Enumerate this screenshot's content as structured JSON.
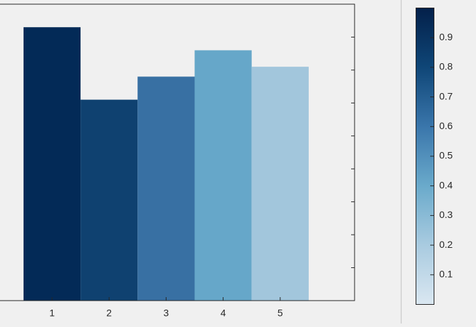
{
  "chart_data": {
    "type": "bar",
    "categories": [
      "1",
      "2",
      "3",
      "4",
      "5"
    ],
    "values": [
      0.83,
      0.61,
      0.68,
      0.76,
      0.71
    ],
    "colors": [
      "#032a57",
      "#0f4170",
      "#3870a3",
      "#66a7c9",
      "#a2c6dc"
    ],
    "ylim": [
      0,
      0.9
    ],
    "yticks": [
      0.1,
      0.2,
      0.3,
      0.4,
      0.5,
      0.6,
      0.7,
      0.8
    ],
    "colorbar": {
      "lim": [
        0,
        1
      ],
      "ticks": [
        0.1,
        0.2,
        0.3,
        0.4,
        0.5,
        0.6,
        0.7,
        0.8,
        0.9
      ],
      "colormap": [
        "#dae7f1",
        "#a9cbe0",
        "#6aaacb",
        "#3a76ab",
        "#0f4677",
        "#03204a"
      ]
    }
  }
}
